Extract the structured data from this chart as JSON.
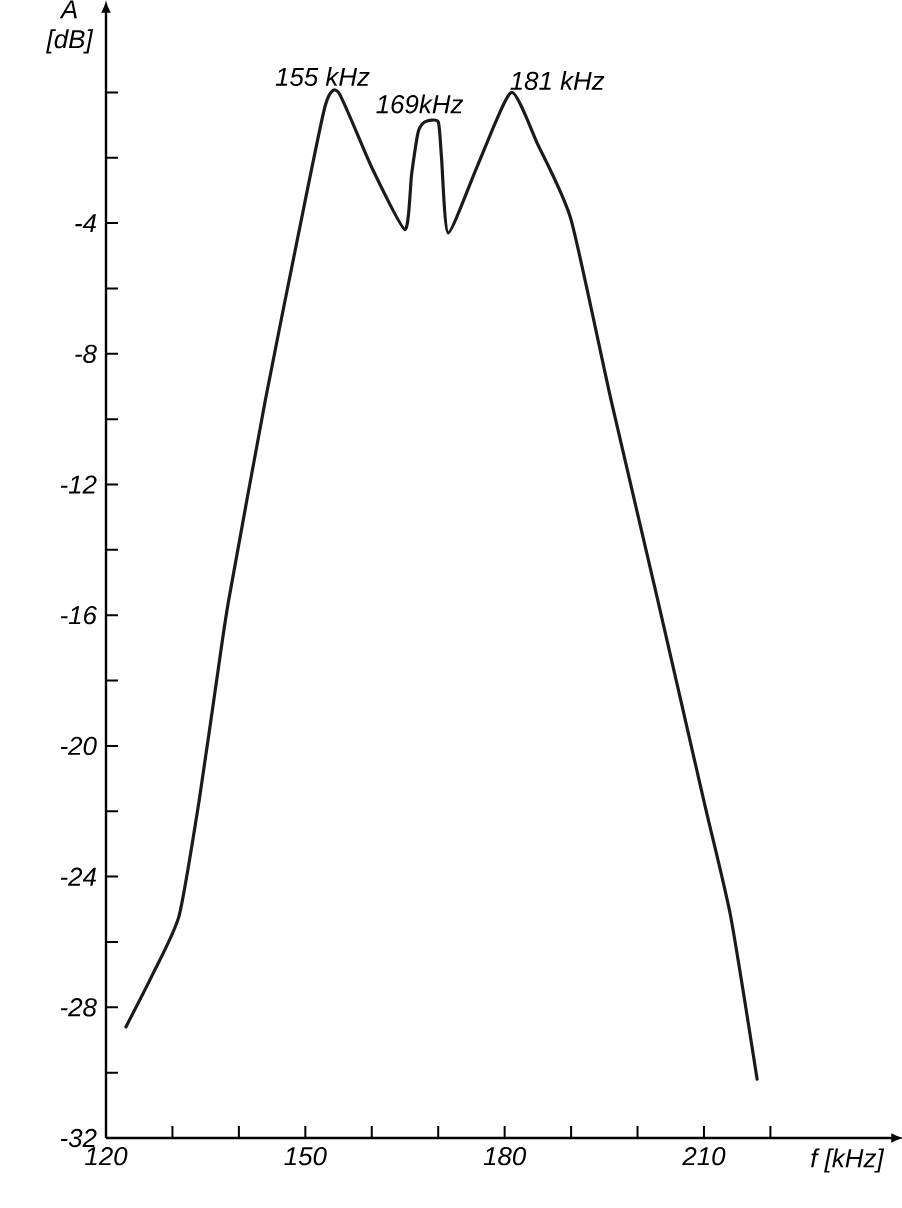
{
  "chart_data": {
    "type": "line",
    "xlabel": "f [kHz]",
    "ylabel": "A [dB]",
    "xlim": [
      120,
      238
    ],
    "ylim": [
      -32,
      2.4
    ],
    "xticks": [
      120,
      {
        "value": 130,
        "label": null
      },
      {
        "value": 140,
        "label": null
      },
      150,
      {
        "value": 160,
        "label": null
      },
      {
        "value": 170,
        "label": null
      },
      180,
      {
        "value": 190,
        "label": null
      },
      {
        "value": 200,
        "label": null
      },
      210,
      {
        "value": 220,
        "label": null
      }
    ],
    "yticks": [
      -32,
      {
        "value": -30,
        "label": null
      },
      -28,
      {
        "value": -26,
        "label": null
      },
      -24,
      {
        "value": -22,
        "label": null
      },
      -20,
      {
        "value": -18,
        "label": null
      },
      -16,
      {
        "value": -14,
        "label": null
      },
      -12,
      {
        "value": -10,
        "label": null
      },
      -8,
      {
        "value": -6,
        "label": null
      },
      -4,
      {
        "value": -2,
        "label": null
      },
      {
        "value": 0,
        "label": null
      }
    ],
    "marker": "none",
    "line_style": "solid",
    "grid": false,
    "series": [
      {
        "color": "#1a1a1a",
        "x": [
          123,
          127,
          131,
          134,
          137,
          138.5,
          144,
          149,
          153,
          155,
          160,
          165,
          166,
          167,
          168,
          170,
          170.5,
          171.5,
          176,
          181,
          185,
          190,
          196,
          203,
          210,
          214,
          218
        ],
        "values": [
          -28.6,
          -27,
          -25.2,
          -21.7,
          -17.5,
          -15.5,
          -9.4,
          -4.3,
          -0.4,
          0,
          -2.3,
          -4.2,
          -2.5,
          -1.2,
          -0.9,
          -0.9,
          -2,
          -4.3,
          -2.2,
          0,
          -1.6,
          -3.9,
          -9.4,
          -15.5,
          -21.7,
          -25.2,
          -30.2
        ]
      }
    ],
    "annotations": [
      {
        "text": "155 kHz",
        "x": 155,
        "y": 0
      },
      {
        "text": "169kHz",
        "x": 169,
        "y": -0.9
      },
      {
        "text": "181 kHz",
        "x": 181,
        "y": 0
      }
    ]
  }
}
